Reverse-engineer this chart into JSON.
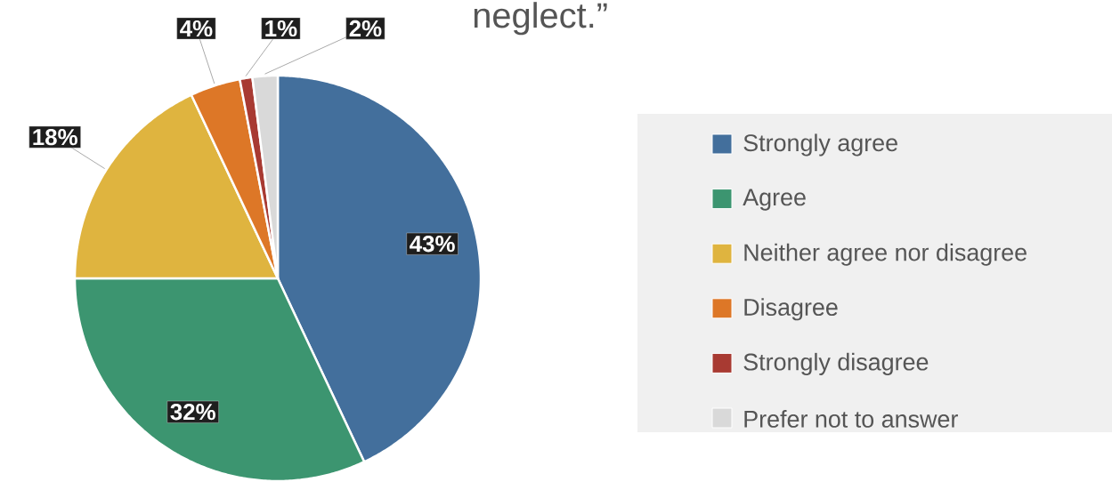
{
  "chart_data": {
    "type": "pie",
    "title": "neglect.”",
    "categories": [
      "Strongly agree",
      "Agree",
      "Neither agree nor disagree",
      "Disagree",
      "Strongly disagree",
      "Prefer not to answer"
    ],
    "values": [
      43,
      32,
      18,
      4,
      1,
      2
    ],
    "colors": [
      "#436f9c",
      "#3c9570",
      "#dfb43f",
      "#dd7727",
      "#a83a32",
      "#d9d9d9"
    ],
    "value_labels": [
      "43%",
      "32%",
      "18%",
      "4%",
      "1%",
      "2%"
    ],
    "legend": "right"
  }
}
